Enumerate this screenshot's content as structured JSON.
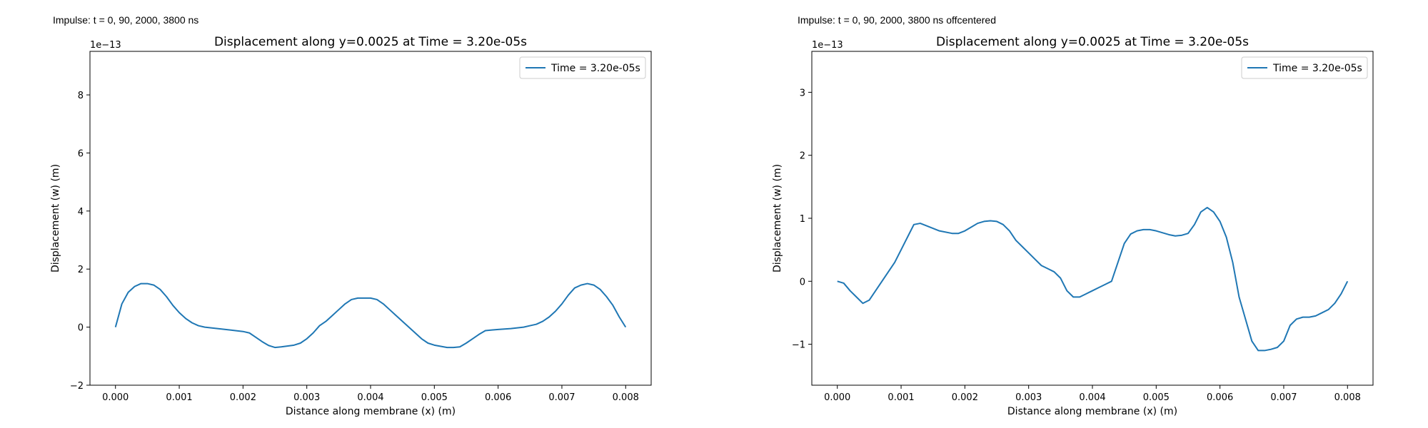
{
  "figure": {
    "left_caption": "Impulse: t = 0, 90, 2000, 3800 ns",
    "right_caption": "Impulse: t = 0, 90, 2000, 3800 ns offcentered"
  },
  "colors": {
    "series": "#1f77b4"
  },
  "chart_data": [
    {
      "type": "line",
      "title": "Displacement along y=0.0025 at Time = 3.20e-05s",
      "xlabel": "Distance along membrane (x) (m)",
      "ylabel": "Displacement (w) (m)",
      "y_multiplier": "1e−13",
      "xlim": [
        -0.0004,
        0.0084
      ],
      "ylim": [
        -2,
        9.5
      ],
      "xticks": [
        0.0,
        0.001,
        0.002,
        0.003,
        0.004,
        0.005,
        0.006,
        0.007,
        0.008
      ],
      "xtick_labels": [
        "0.000",
        "0.001",
        "0.002",
        "0.003",
        "0.004",
        "0.005",
        "0.006",
        "0.007",
        "0.008"
      ],
      "yticks": [
        -2,
        0,
        2,
        4,
        6,
        8
      ],
      "ytick_labels": [
        "−2",
        "0",
        "2",
        "4",
        "6",
        "8"
      ],
      "legend": "upper right",
      "grid": false,
      "series": [
        {
          "name": "Time = 3.20e-05s",
          "x": [
            0.0,
            0.0001,
            0.0002,
            0.0003,
            0.0004,
            0.0005,
            0.0006,
            0.0007,
            0.0008,
            0.0009,
            0.001,
            0.0011,
            0.0012,
            0.0013,
            0.0014,
            0.0016,
            0.0018,
            0.002,
            0.0021,
            0.0022,
            0.0023,
            0.0024,
            0.0025,
            0.0026,
            0.0028,
            0.0029,
            0.003,
            0.0031,
            0.0032,
            0.0033,
            0.0034,
            0.0035,
            0.0036,
            0.0037,
            0.0038,
            0.0039,
            0.004,
            0.0041,
            0.0042,
            0.0043,
            0.0044,
            0.0045,
            0.0046,
            0.0047,
            0.0048,
            0.0049,
            0.005,
            0.0051,
            0.0052,
            0.0053,
            0.0054,
            0.0055,
            0.0056,
            0.0057,
            0.0058,
            0.0059,
            0.006,
            0.0062,
            0.0064,
            0.0065,
            0.0066,
            0.0067,
            0.0068,
            0.0069,
            0.007,
            0.0071,
            0.0072,
            0.0073,
            0.0074,
            0.0075,
            0.0076,
            0.0077,
            0.0078,
            0.0079,
            0.008
          ],
          "y": [
            0.0,
            0.8,
            1.2,
            1.4,
            1.5,
            1.5,
            1.45,
            1.3,
            1.05,
            0.75,
            0.5,
            0.3,
            0.15,
            0.05,
            0.0,
            -0.05,
            -0.1,
            -0.15,
            -0.2,
            -0.35,
            -0.5,
            -0.63,
            -0.7,
            -0.68,
            -0.62,
            -0.55,
            -0.4,
            -0.2,
            0.05,
            0.2,
            0.4,
            0.6,
            0.8,
            0.95,
            1.0,
            1.0,
            1.0,
            0.95,
            0.8,
            0.6,
            0.4,
            0.2,
            0.0,
            -0.2,
            -0.4,
            -0.55,
            -0.62,
            -0.66,
            -0.7,
            -0.7,
            -0.68,
            -0.55,
            -0.4,
            -0.25,
            -0.12,
            -0.1,
            -0.08,
            -0.05,
            0.0,
            0.05,
            0.1,
            0.2,
            0.35,
            0.55,
            0.8,
            1.1,
            1.35,
            1.45,
            1.5,
            1.45,
            1.3,
            1.05,
            0.75,
            0.35,
            0.0
          ]
        }
      ]
    },
    {
      "type": "line",
      "title": "Displacement along y=0.0025 at Time = 3.20e-05s",
      "xlabel": "Distance along membrane (x) (m)",
      "ylabel": "Displacement (w) (m)",
      "y_multiplier": "1e−13",
      "xlim": [
        -0.0004,
        0.0084
      ],
      "ylim": [
        -1.65,
        3.65
      ],
      "xticks": [
        0.0,
        0.001,
        0.002,
        0.003,
        0.004,
        0.005,
        0.006,
        0.007,
        0.008
      ],
      "xtick_labels": [
        "0.000",
        "0.001",
        "0.002",
        "0.003",
        "0.004",
        "0.005",
        "0.006",
        "0.007",
        "0.008"
      ],
      "yticks": [
        -1,
        0,
        1,
        2,
        3
      ],
      "ytick_labels": [
        "−1",
        "0",
        "1",
        "2",
        "3"
      ],
      "legend": "upper right",
      "grid": false,
      "series": [
        {
          "name": "Time = 3.20e-05s",
          "x": [
            0.0,
            0.0001,
            0.0002,
            0.0003,
            0.0004,
            0.0005,
            0.0006,
            0.0007,
            0.0008,
            0.0009,
            0.001,
            0.0011,
            0.0012,
            0.0013,
            0.0014,
            0.0016,
            0.0018,
            0.0019,
            0.002,
            0.0021,
            0.0022,
            0.0023,
            0.0024,
            0.0025,
            0.0026,
            0.0027,
            0.0028,
            0.0029,
            0.003,
            0.0031,
            0.0032,
            0.0033,
            0.0034,
            0.0035,
            0.0036,
            0.0037,
            0.0038,
            0.0039,
            0.004,
            0.0041,
            0.0042,
            0.0043,
            0.0044,
            0.0045,
            0.0046,
            0.0047,
            0.0048,
            0.0049,
            0.005,
            0.0051,
            0.0052,
            0.0053,
            0.0054,
            0.0055,
            0.0056,
            0.0057,
            0.0058,
            0.0059,
            0.006,
            0.0061,
            0.0062,
            0.0063,
            0.0064,
            0.0065,
            0.0066,
            0.0067,
            0.0068,
            0.0069,
            0.007,
            0.0071,
            0.0072,
            0.0073,
            0.0074,
            0.0075,
            0.0076,
            0.0077,
            0.0078,
            0.0079,
            0.008
          ],
          "y": [
            0.0,
            -0.03,
            -0.15,
            -0.25,
            -0.35,
            -0.3,
            -0.15,
            0.0,
            0.15,
            0.3,
            0.5,
            0.7,
            0.9,
            0.92,
            0.88,
            0.8,
            0.76,
            0.76,
            0.8,
            0.86,
            0.92,
            0.95,
            0.96,
            0.95,
            0.9,
            0.8,
            0.65,
            0.55,
            0.45,
            0.35,
            0.25,
            0.2,
            0.15,
            0.05,
            -0.15,
            -0.25,
            -0.25,
            -0.2,
            -0.15,
            -0.1,
            -0.05,
            0.0,
            0.3,
            0.6,
            0.75,
            0.8,
            0.82,
            0.82,
            0.8,
            0.77,
            0.74,
            0.72,
            0.73,
            0.76,
            0.9,
            1.1,
            1.17,
            1.1,
            0.95,
            0.7,
            0.3,
            -0.25,
            -0.6,
            -0.95,
            -1.1,
            -1.1,
            -1.08,
            -1.05,
            -0.95,
            -0.7,
            -0.6,
            -0.57,
            -0.57,
            -0.55,
            -0.5,
            -0.45,
            -0.35,
            -0.2,
            0.0
          ]
        }
      ]
    }
  ]
}
